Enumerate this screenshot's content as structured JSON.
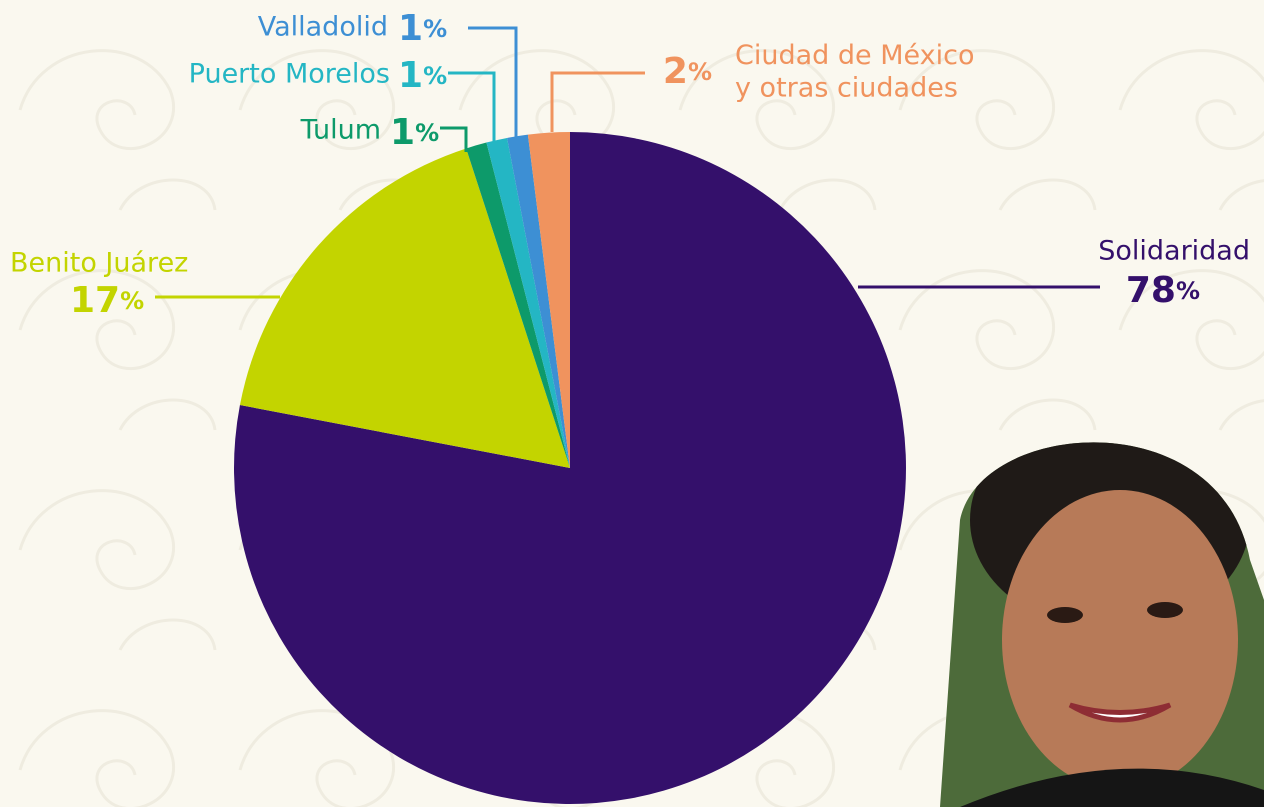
{
  "chart_data": {
    "type": "pie",
    "categories": [
      "Solidaridad",
      "Benito Juárez",
      "Tulum",
      "Puerto Morelos",
      "Valladolid",
      "Ciudad de México\ny otras ciudades"
    ],
    "values": [
      78,
      17,
      1,
      1,
      1,
      2
    ],
    "value_labels": [
      "78%",
      "17%",
      "1%",
      "1%",
      "1%",
      "2%"
    ],
    "colors": [
      "#34106b",
      "#c3d400",
      "#0d9a6a",
      "#24b6c4",
      "#3d8fd4",
      "#f0935e"
    ]
  }
}
